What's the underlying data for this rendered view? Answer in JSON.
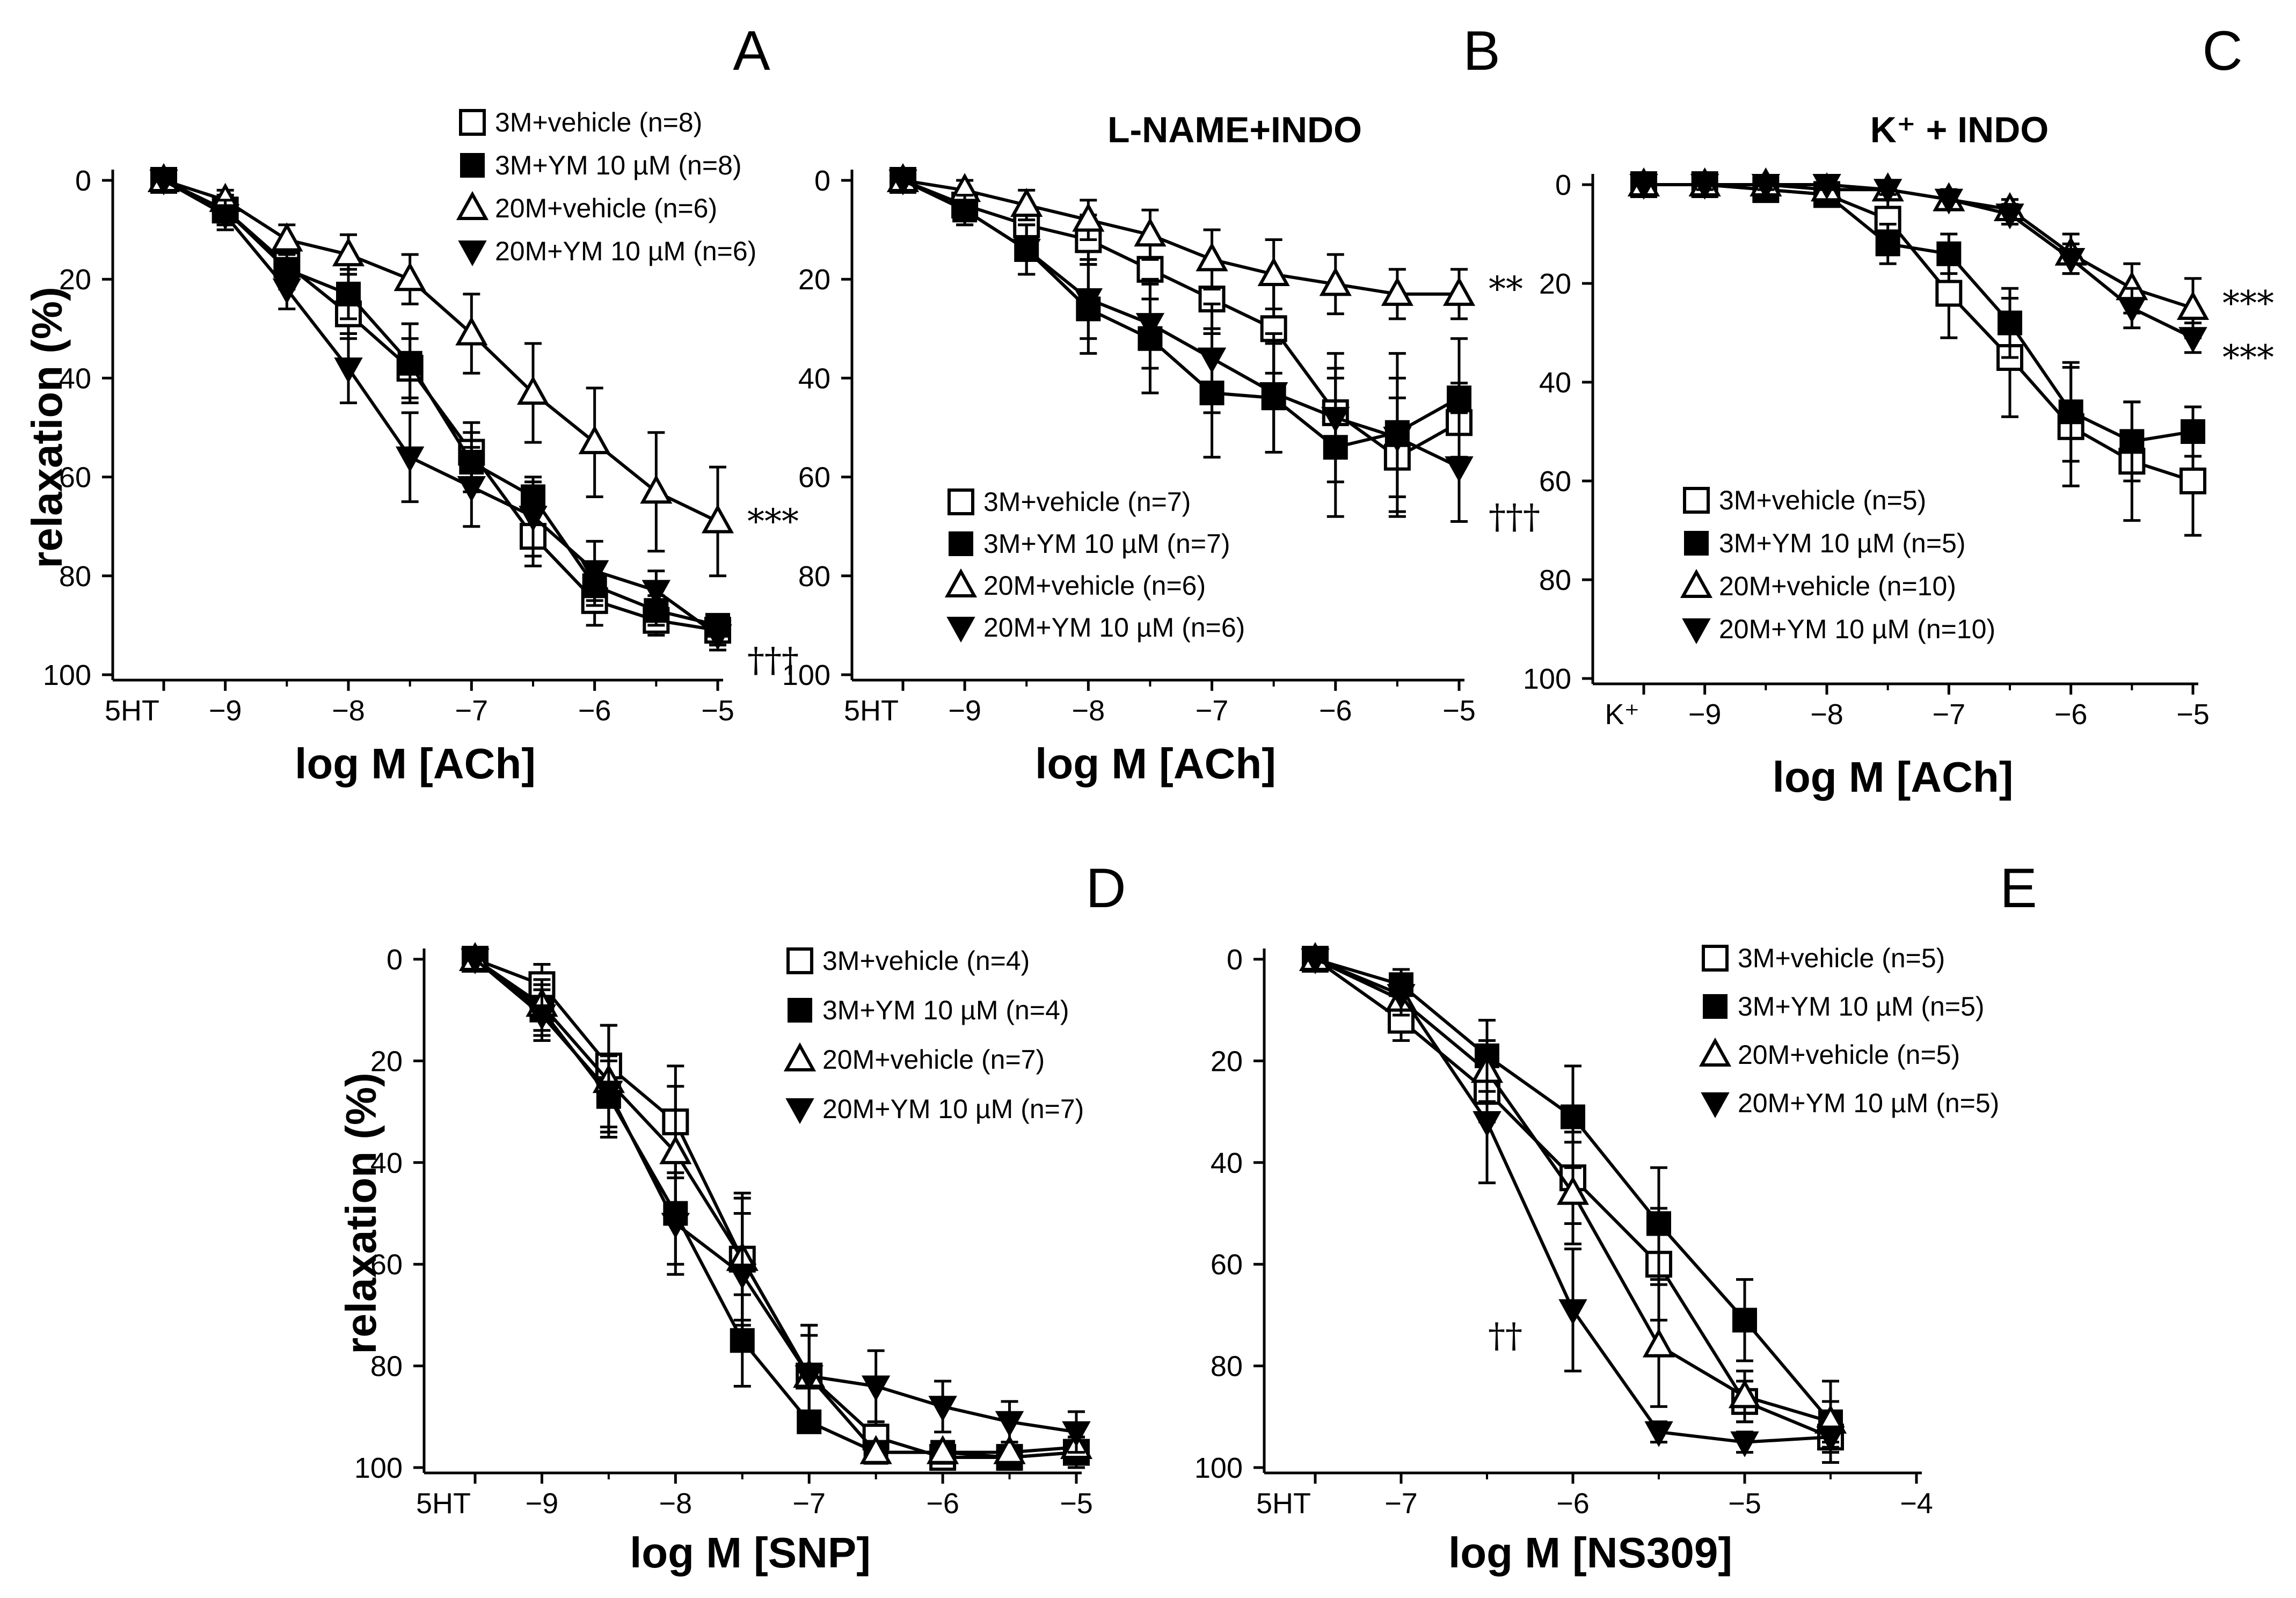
{
  "chart_data": [
    {
      "id": "A",
      "type": "line",
      "panel_label": "A",
      "title": "",
      "xlabel": "log M [ACh]",
      "ylabel": "relaxation (%)",
      "x_ticks": [
        "5HT",
        "−9",
        "−8",
        "−7",
        "−6",
        "−5"
      ],
      "y_ticks": [
        "0",
        "20",
        "40",
        "60",
        "80",
        "100"
      ],
      "xlim": [
        -9.5,
        -5
      ],
      "ylim": [
        0,
        100
      ],
      "y_inverted": true,
      "x": [
        -9.5,
        -9,
        -8.5,
        -8,
        -7.5,
        -7,
        -6.5,
        -6,
        -5.5,
        -5
      ],
      "series": [
        {
          "name": "3M+vehicle (n=8)",
          "marker": "square-open",
          "values": [
            0,
            6,
            17,
            27,
            38,
            55,
            72,
            85,
            89,
            91
          ],
          "errors": [
            0,
            3,
            3,
            5,
            6,
            6,
            6,
            5,
            3,
            3
          ]
        },
        {
          "name": "3M+YM 10 µM (n=8)",
          "marker": "square-filled",
          "values": [
            0,
            6,
            18,
            23,
            37,
            57,
            64,
            82,
            87,
            90
          ],
          "errors": [
            0,
            3,
            4,
            5,
            8,
            6,
            3,
            4,
            3,
            2
          ]
        },
        {
          "name": "20M+vehicle (n=6)",
          "marker": "triangle-up-open",
          "values": [
            0,
            4,
            12,
            15,
            20,
            31,
            43,
            53,
            63,
            69
          ],
          "errors": [
            0,
            2,
            3,
            4,
            5,
            8,
            10,
            11,
            12,
            11
          ]
        },
        {
          "name": "20M+YM 10 µM (n=6)",
          "marker": "triangle-down-filled",
          "values": [
            0,
            7,
            22,
            38,
            56,
            62,
            68,
            79,
            83,
            92
          ],
          "errors": [
            0,
            3,
            4,
            7,
            9,
            8,
            8,
            6,
            4,
            3
          ]
        }
      ],
      "annotations": [
        {
          "text": "***",
          "x": -5,
          "y": 69
        },
        {
          "text": "†††",
          "x": -5,
          "y": 97
        }
      ]
    },
    {
      "id": "B",
      "type": "line",
      "panel_label": "B",
      "title": "L-NAME+INDO",
      "xlabel": "log M [ACh]",
      "ylabel": "",
      "x_ticks": [
        "5HT",
        "−9",
        "−8",
        "−7",
        "−6",
        "−5"
      ],
      "y_ticks": [
        "0",
        "20",
        "40",
        "60",
        "80",
        "100"
      ],
      "xlim": [
        -9.5,
        -5
      ],
      "ylim": [
        0,
        100
      ],
      "y_inverted": true,
      "x": [
        -9.5,
        -9,
        -8.5,
        -8,
        -7.5,
        -7,
        -6.5,
        -6,
        -5.5,
        -5
      ],
      "series": [
        {
          "name": "3M+vehicle (n=7)",
          "marker": "square-open",
          "values": [
            0,
            5,
            9,
            12,
            18,
            24,
            30,
            47,
            56,
            49
          ],
          "errors": [
            0,
            3,
            4,
            5,
            6,
            7,
            9,
            9,
            12,
            8
          ]
        },
        {
          "name": "3M+YM 10 µM (n=7)",
          "marker": "square-filled",
          "values": [
            0,
            6,
            14,
            26,
            32,
            43,
            44,
            54,
            51,
            44
          ],
          "errors": [
            0,
            3,
            5,
            9,
            11,
            13,
            11,
            14,
            16,
            12
          ]
        },
        {
          "name": "20M+vehicle (n=6)",
          "marker": "triangle-up-open",
          "values": [
            0,
            2,
            5,
            8,
            11,
            16,
            19,
            21,
            23,
            23
          ],
          "errors": [
            0,
            2,
            3,
            4,
            5,
            6,
            7,
            6,
            5,
            5
          ]
        },
        {
          "name": "20M+YM 10 µM (n=6)",
          "marker": "triangle-down-filled",
          "values": [
            0,
            6,
            14,
            24,
            29,
            36,
            43,
            48,
            52,
            58
          ],
          "errors": [
            0,
            3,
            5,
            8,
            9,
            11,
            12,
            13,
            12,
            11
          ]
        }
      ],
      "annotations": [
        {
          "text": "**",
          "x": -5,
          "y": 22
        },
        {
          "text": "†††",
          "x": -5,
          "y": 68
        }
      ]
    },
    {
      "id": "C",
      "type": "line",
      "panel_label": "C",
      "title": "K⁺ + INDO",
      "xlabel": "log M [ACh]",
      "ylabel": "",
      "x_ticks": [
        "K⁺",
        "−9",
        "−8",
        "−7",
        "−6",
        "−5"
      ],
      "y_ticks": [
        "0",
        "20",
        "40",
        "60",
        "80",
        "100"
      ],
      "xlim": [
        -9.5,
        -5
      ],
      "ylim": [
        0,
        100
      ],
      "y_inverted": true,
      "x": [
        -9.5,
        -9,
        -8.5,
        -8,
        -7.5,
        -7,
        -6.5,
        -6,
        -5.5,
        -5
      ],
      "series": [
        {
          "name": "3M+vehicle (n=5)",
          "marker": "square-open",
          "values": [
            0,
            0,
            1,
            2,
            7,
            22,
            35,
            49,
            56,
            60
          ],
          "errors": [
            0,
            1,
            2,
            2,
            4,
            9,
            12,
            12,
            12,
            11
          ]
        },
        {
          "name": "3M+YM 10 µM (n=5)",
          "marker": "square-filled",
          "values": [
            0,
            0,
            1,
            2,
            12,
            14,
            28,
            46,
            52,
            50
          ],
          "errors": [
            0,
            1,
            1,
            2,
            4,
            4,
            7,
            10,
            8,
            5
          ]
        },
        {
          "name": "20M+vehicle (n=10)",
          "marker": "triangle-up-open",
          "values": [
            0,
            0,
            0,
            1,
            1,
            3,
            5,
            14,
            21,
            25
          ],
          "errors": [
            0,
            1,
            1,
            1,
            1,
            2,
            2,
            4,
            5,
            6
          ]
        },
        {
          "name": "20M+YM 10 µM (n=10)",
          "marker": "triangle-down-filled",
          "values": [
            0,
            0,
            0,
            0,
            1,
            3,
            6,
            15,
            25,
            31
          ],
          "errors": [
            0,
            1,
            1,
            1,
            1,
            2,
            2,
            3,
            4,
            3
          ]
        }
      ],
      "annotations": [
        {
          "text": "***",
          "x": -5,
          "y": 24
        },
        {
          "text": "***",
          "x": -5,
          "y": 35
        }
      ]
    },
    {
      "id": "D",
      "type": "line",
      "panel_label": "D",
      "title": "",
      "xlabel": "log M [SNP]",
      "ylabel": "relaxation (%)",
      "x_ticks": [
        "5HT",
        "−9",
        "−8",
        "−7",
        "−6",
        "−5"
      ],
      "y_ticks": [
        "0",
        "20",
        "40",
        "60",
        "80",
        "100"
      ],
      "xlim": [
        -9.5,
        -5
      ],
      "ylim": [
        0,
        100
      ],
      "y_inverted": true,
      "x": [
        -9.5,
        -9,
        -8.5,
        -8,
        -7.5,
        -7,
        -6.5,
        -6,
        -5.5,
        -5
      ],
      "series": [
        {
          "name": "3M+vehicle (n=4)",
          "marker": "square-open",
          "values": [
            0,
            5,
            21,
            32,
            59,
            82,
            94,
            98,
            98,
            97
          ],
          "errors": [
            0,
            4,
            8,
            11,
            13,
            10,
            3,
            2,
            2,
            3
          ]
        },
        {
          "name": "3M+YM 10 µM (n=4)",
          "marker": "square-filled",
          "values": [
            0,
            10,
            27,
            50,
            75,
            91,
            97,
            97,
            98,
            97
          ],
          "errors": [
            0,
            5,
            7,
            10,
            9,
            2,
            2,
            2,
            2,
            2
          ]
        },
        {
          "name": "20M+vehicle (n=7)",
          "marker": "triangle-up-open",
          "values": [
            0,
            9,
            24,
            38,
            59,
            82,
            97,
            97,
            97,
            96
          ],
          "errors": [
            0,
            5,
            11,
            13,
            12,
            10,
            2,
            2,
            2,
            2
          ]
        },
        {
          "name": "20M+YM 10 µM (n=7)",
          "marker": "triangle-down-filled",
          "values": [
            0,
            11,
            26,
            52,
            62,
            82,
            84,
            88,
            91,
            93
          ],
          "errors": [
            0,
            5,
            7,
            10,
            12,
            8,
            7,
            5,
            4,
            4
          ]
        }
      ],
      "annotations": []
    },
    {
      "id": "E",
      "type": "line",
      "panel_label": "E",
      "title": "",
      "xlabel": "log M [NS309]",
      "ylabel": "",
      "x_ticks": [
        "5HT",
        "−7",
        "−6",
        "−5",
        "−4"
      ],
      "y_ticks": [
        "0",
        "20",
        "40",
        "60",
        "80",
        "100"
      ],
      "xlim": [
        -7.5,
        -4
      ],
      "ylim": [
        0,
        100
      ],
      "y_inverted": true,
      "x": [
        -7.5,
        -7,
        -6.5,
        -6,
        -5.5,
        -5,
        -4.5
      ],
      "series": [
        {
          "name": "3M+vehicle (n=5)",
          "marker": "square-open",
          "values": [
            0,
            12,
            26,
            43,
            60,
            87,
            94
          ],
          "errors": [
            0,
            4,
            6,
            9,
            11,
            4,
            3
          ]
        },
        {
          "name": "3M+YM 10 µM (n=5)",
          "marker": "square-filled",
          "values": [
            0,
            5,
            19,
            31,
            52,
            71,
            91
          ],
          "errors": [
            0,
            3,
            7,
            10,
            11,
            8,
            8
          ]
        },
        {
          "name": "20M+vehicle (n=5)",
          "marker": "triangle-up-open",
          "values": [
            0,
            8,
            22,
            46,
            76,
            86,
            91
          ],
          "errors": [
            0,
            3,
            6,
            10,
            12,
            5,
            4
          ]
        },
        {
          "name": "20M+YM 10 µM (n=5)",
          "marker": "triangle-down-filled",
          "values": [
            0,
            7,
            32,
            69,
            93,
            95,
            94
          ],
          "errors": [
            0,
            3,
            12,
            12,
            2,
            2,
            2
          ]
        }
      ],
      "annotations": [
        {
          "text": "††",
          "x": -6.2,
          "y": 74
        }
      ]
    }
  ]
}
